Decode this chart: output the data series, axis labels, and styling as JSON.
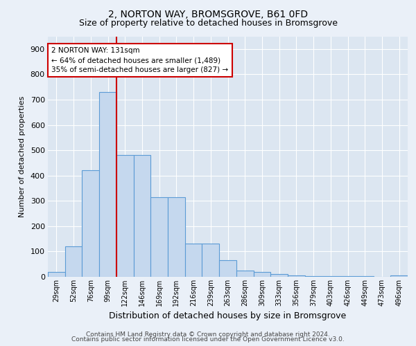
{
  "title1": "2, NORTON WAY, BROMSGROVE, B61 0FD",
  "title2": "Size of property relative to detached houses in Bromsgrove",
  "xlabel": "Distribution of detached houses by size in Bromsgrove",
  "ylabel": "Number of detached properties",
  "categories": [
    "29sqm",
    "52sqm",
    "76sqm",
    "99sqm",
    "122sqm",
    "146sqm",
    "169sqm",
    "192sqm",
    "216sqm",
    "239sqm",
    "263sqm",
    "286sqm",
    "309sqm",
    "333sqm",
    "356sqm",
    "379sqm",
    "403sqm",
    "426sqm",
    "449sqm",
    "473sqm",
    "496sqm"
  ],
  "values": [
    18,
    120,
    420,
    730,
    480,
    480,
    315,
    315,
    130,
    130,
    65,
    25,
    20,
    10,
    5,
    3,
    3,
    2,
    2,
    0,
    5
  ],
  "bar_color": "#c5d8ee",
  "bar_edge_color": "#5b9bd5",
  "vline_pos": 3.5,
  "vline_color": "#cc0000",
  "annotation_text": "2 NORTON WAY: 131sqm\n← 64% of detached houses are smaller (1,489)\n35% of semi-detached houses are larger (827) →",
  "annotation_box_color": "#ffffff",
  "annotation_box_edge": "#cc0000",
  "ylim": [
    0,
    950
  ],
  "yticks": [
    0,
    100,
    200,
    300,
    400,
    500,
    600,
    700,
    800,
    900
  ],
  "footer1": "Contains HM Land Registry data © Crown copyright and database right 2024.",
  "footer2": "Contains public sector information licensed under the Open Government Licence v3.0.",
  "bg_color": "#eaf0f8",
  "plot_bg_color": "#dce6f1",
  "title1_fontsize": 10,
  "title2_fontsize": 9,
  "ylabel_fontsize": 8,
  "xlabel_fontsize": 9
}
